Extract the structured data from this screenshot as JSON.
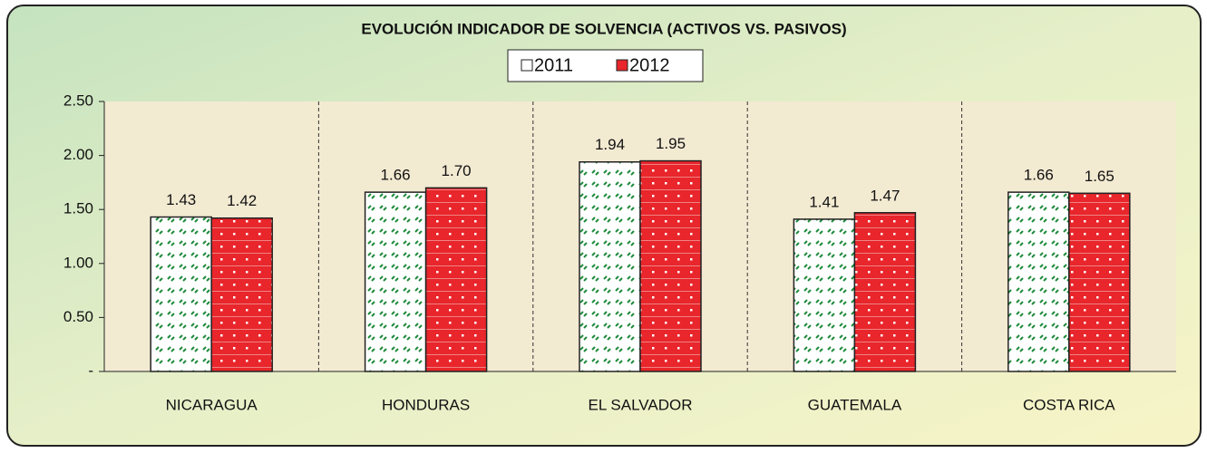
{
  "chart_data": {
    "type": "bar",
    "title": "EVOLUCIÓN INDICADOR DE SOLVENCIA (ACTIVOS  VS.  PASIVOS)",
    "categories": [
      "NICARAGUA",
      "HONDURAS",
      "EL SALVADOR",
      "GUATEMALA",
      "COSTA RICA"
    ],
    "series": [
      {
        "name": "2011",
        "color": "#ffffff",
        "values": [
          1.43,
          1.66,
          1.94,
          1.41,
          1.66
        ],
        "value_labels": [
          "1.43",
          "1.66",
          "1.94",
          "1.41",
          "1.66"
        ]
      },
      {
        "name": "2012",
        "color": "#e8262b",
        "values": [
          1.42,
          1.7,
          1.95,
          1.47,
          1.65
        ],
        "value_labels": [
          "1.42",
          "1.70",
          "1.95",
          "1.47",
          "1.65"
        ]
      }
    ],
    "ylim": [
      0,
      2.5
    ],
    "yticks": [
      {
        "value": 0,
        "label": "-"
      },
      {
        "value": 0.5,
        "label": "0.50"
      },
      {
        "value": 1,
        "label": "1.00"
      },
      {
        "value": 1.5,
        "label": "1.50"
      },
      {
        "value": 2,
        "label": "2.00"
      },
      {
        "value": 2.5,
        "label": "2.50"
      }
    ],
    "legend": "top"
  }
}
